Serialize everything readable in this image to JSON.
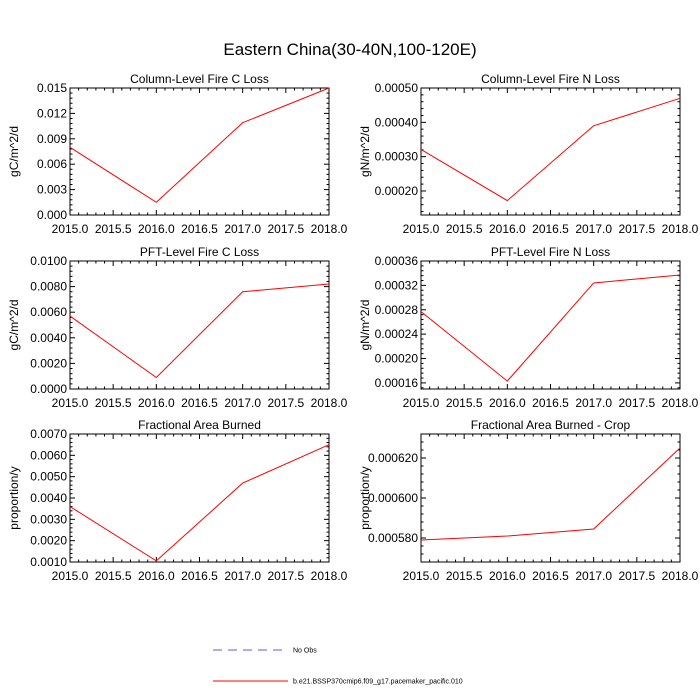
{
  "figure": {
    "title": "Eastern China(30-40N,100-120E)"
  },
  "legend": {
    "items": [
      {
        "label": "No Obs",
        "style": "dashed",
        "color": "#6a5acd"
      },
      {
        "label": "b.e21.BSSP370cmip6.f09_g17.pacemaker_pacific.010",
        "style": "solid",
        "color": "#ff0000"
      }
    ]
  },
  "chart_data": [
    {
      "id": "column-fire-c-loss",
      "type": "line",
      "title": "Column-Level Fire C Loss",
      "xlabel": "",
      "ylabel": "gC/m^2/d",
      "xlim": [
        2015.0,
        2018.0
      ],
      "ylim": [
        0.0,
        0.015
      ],
      "xticks": [
        "2015.0",
        "2015.5",
        "2016.0",
        "2016.5",
        "2017.0",
        "2017.5",
        "2018.0"
      ],
      "yticks": [
        "0.000",
        "0.003",
        "0.006",
        "0.009",
        "0.012",
        "0.015"
      ],
      "series": [
        {
          "color": "#ff0000",
          "x": [
            2015,
            2016,
            2017,
            2018
          ],
          "y": [
            0.008,
            0.0015,
            0.0109,
            0.015
          ]
        }
      ]
    },
    {
      "id": "column-fire-n-loss",
      "type": "line",
      "title": "Column-Level Fire N Loss",
      "xlabel": "",
      "ylabel": "gN/m^2/d",
      "xlim": [
        2015.0,
        2018.0
      ],
      "ylim": [
        0.00013,
        0.0005
      ],
      "xticks": [
        "2015.0",
        "2015.5",
        "2016.0",
        "2016.5",
        "2017.0",
        "2017.5",
        "2018.0"
      ],
      "yticks": [
        "0.00020",
        "0.00030",
        "0.00040",
        "0.00050"
      ],
      "series": [
        {
          "color": "#ff0000",
          "x": [
            2015,
            2016,
            2017,
            2018
          ],
          "y": [
            0.000321,
            0.000172,
            0.00039,
            0.00047
          ]
        }
      ]
    },
    {
      "id": "pft-fire-c-loss",
      "type": "line",
      "title": "PFT-Level Fire C Loss",
      "xlabel": "",
      "ylabel": "gC/m^2/d",
      "xlim": [
        2015.0,
        2018.0
      ],
      "ylim": [
        0.0,
        0.01
      ],
      "xticks": [
        "2015.0",
        "2015.5",
        "2016.0",
        "2016.5",
        "2017.0",
        "2017.5",
        "2018.0"
      ],
      "yticks": [
        "0.0000",
        "0.0020",
        "0.0040",
        "0.0060",
        "0.0080",
        "0.0100"
      ],
      "series": [
        {
          "color": "#ff0000",
          "x": [
            2015,
            2016,
            2017,
            2018
          ],
          "y": [
            0.0057,
            0.0009,
            0.0076,
            0.0082
          ]
        }
      ]
    },
    {
      "id": "pft-fire-n-loss",
      "type": "line",
      "title": "PFT-Level Fire N Loss",
      "xlabel": "",
      "ylabel": "gN/m^2/d",
      "xlim": [
        2015.0,
        2018.0
      ],
      "ylim": [
        0.00015,
        0.00036
      ],
      "xticks": [
        "2015.0",
        "2015.5",
        "2016.0",
        "2016.5",
        "2017.0",
        "2017.5",
        "2018.0"
      ],
      "yticks": [
        "0.00016",
        "0.00020",
        "0.00024",
        "0.00028",
        "0.00032",
        "0.00036"
      ],
      "series": [
        {
          "color": "#ff0000",
          "x": [
            2015,
            2016,
            2017,
            2018
          ],
          "y": [
            0.000277,
            0.000163,
            0.000324,
            0.000337
          ]
        }
      ]
    },
    {
      "id": "fractional-area-burned",
      "type": "line",
      "title": "Fractional Area Burned",
      "xlabel": "",
      "ylabel": "proportion/y",
      "xlim": [
        2015.0,
        2018.0
      ],
      "ylim": [
        0.001,
        0.007
      ],
      "xticks": [
        "2015.0",
        "2015.5",
        "2016.0",
        "2016.5",
        "2017.0",
        "2017.5",
        "2018.0"
      ],
      "yticks": [
        "0.0010",
        "0.0020",
        "0.0030",
        "0.0040",
        "0.0050",
        "0.0060",
        "0.0070"
      ],
      "series": [
        {
          "color": "#ff0000",
          "x": [
            2015,
            2016,
            2017,
            2018
          ],
          "y": [
            0.0036,
            0.00105,
            0.0047,
            0.0065
          ]
        }
      ]
    },
    {
      "id": "fractional-area-burned-crop",
      "type": "line",
      "title": "Fractional Area Burned - Crop",
      "xlabel": "",
      "ylabel": "proportion/y",
      "xlim": [
        2015.0,
        2018.0
      ],
      "ylim": [
        0.000568,
        0.000632
      ],
      "xticks": [
        "2015.0",
        "2015.5",
        "2016.0",
        "2016.5",
        "2017.0",
        "2017.5",
        "2018.0"
      ],
      "yticks": [
        "0.000580",
        "0.000600",
        "0.000620"
      ],
      "series": [
        {
          "color": "#ff0000",
          "x": [
            2015,
            2016,
            2017,
            2018
          ],
          "y": [
            0.000579,
            0.000581,
            0.0005845,
            0.000625
          ]
        }
      ]
    }
  ]
}
